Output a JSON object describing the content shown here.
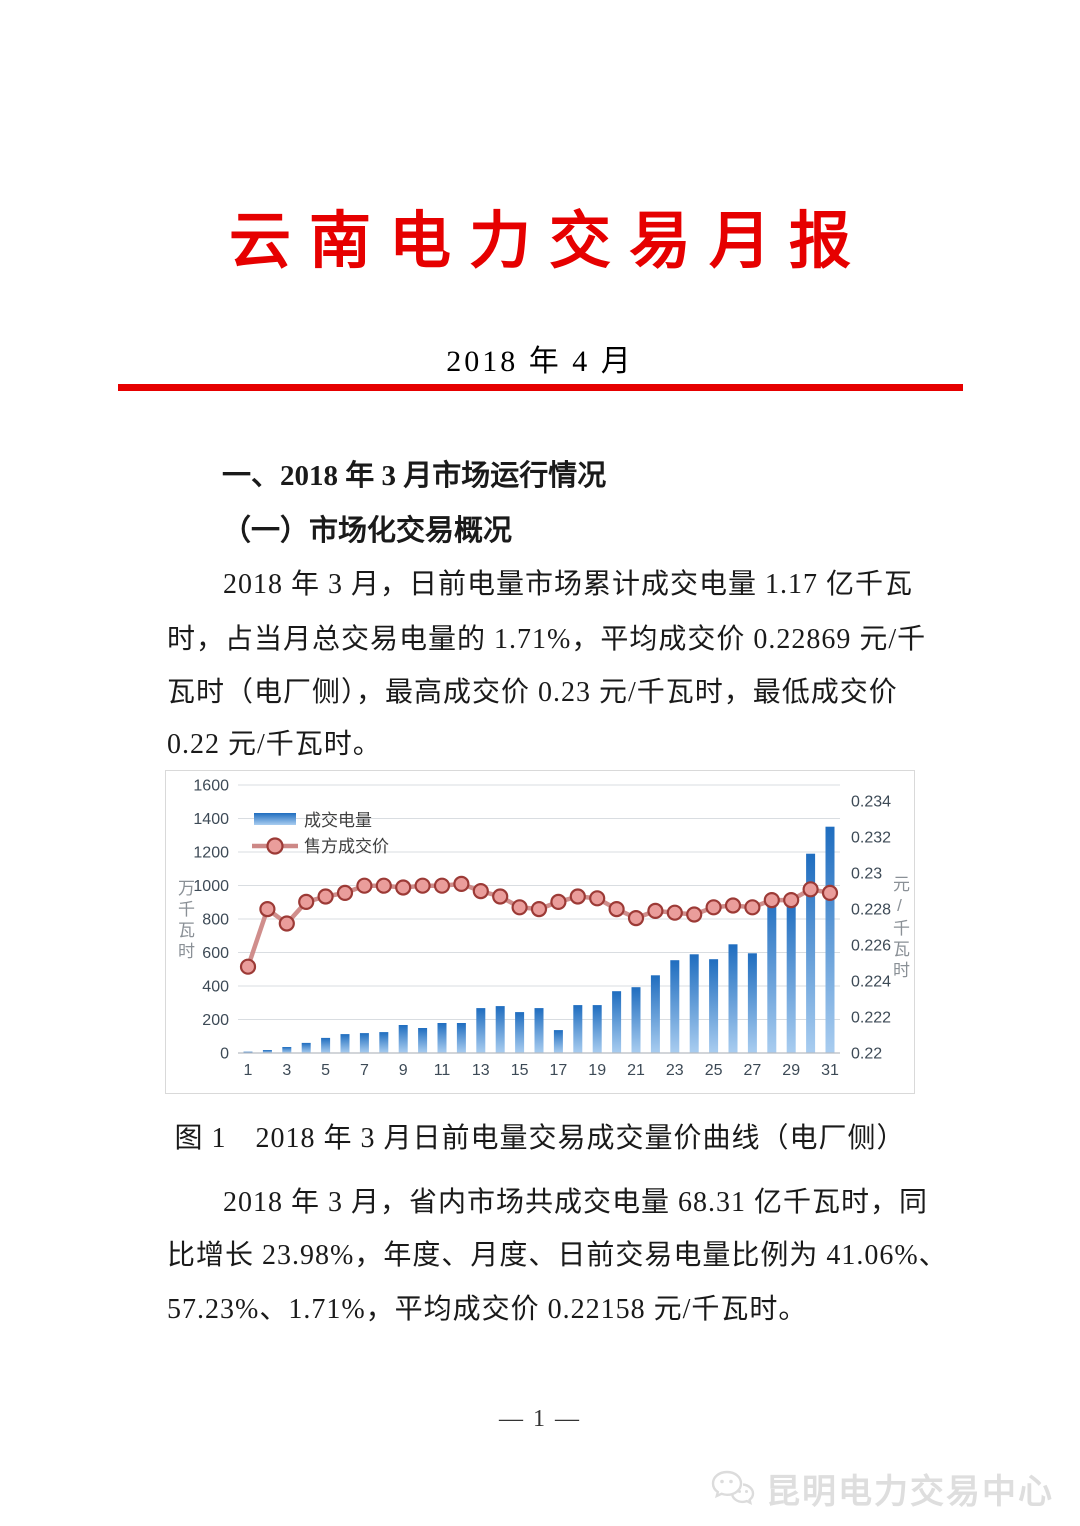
{
  "doc": {
    "title": "云南电力交易月报",
    "subtitle": "2018 年 4 月",
    "section_heading": "一、2018 年 3 月市场运行情况",
    "subsection_heading": "（一）市场化交易概况",
    "paragraph1_lines": [
      "2018 年 3 月，日前电量市场累计成交电量 1.17 亿千瓦",
      "时，占当月总交易电量的 1.71%，平均成交价 0.22869 元/千",
      "瓦时（电厂侧），最高成交价 0.23 元/千瓦时，最低成交价",
      "0.22 元/千瓦时。"
    ],
    "figure_caption": "图 1　2018 年 3 月日前电量交易成交量价曲线（电厂侧）",
    "paragraph2_lines": [
      "2018 年 3 月，省内市场共成交电量 68.31 亿千瓦时，同",
      "比增长 23.98%，年度、月度、日前交易电量比例为 41.06%、",
      "57.23%、1.71%，平均成交价 0.22158 元/千瓦时。"
    ],
    "page_number": "— 1 —",
    "footer_brand": "昆明电力交易中心"
  },
  "colors": {
    "accent_red": "#e60000",
    "bar_top": "#1f6dbf",
    "bar_bottom": "#a9cdf0",
    "line": "#cd8886",
    "marker_fill": "#ea9d9b",
    "marker_stroke": "#9c3a36",
    "gridline": "#d9dde1",
    "axis_line": "#b7bcc2",
    "tick_text": "#3d4a56",
    "legend_text": "#404040",
    "axis_title_text": "#8a9096"
  },
  "chart_data": {
    "type": "combo",
    "x": [
      1,
      2,
      3,
      4,
      5,
      6,
      7,
      8,
      9,
      10,
      11,
      12,
      13,
      14,
      15,
      16,
      17,
      18,
      19,
      20,
      21,
      22,
      23,
      24,
      25,
      26,
      27,
      28,
      29,
      30,
      31
    ],
    "x_axis_tick_labels": [
      1,
      3,
      5,
      7,
      9,
      11,
      13,
      15,
      17,
      19,
      21,
      23,
      25,
      27,
      29,
      31
    ],
    "series": [
      {
        "name": "成交电量",
        "type": "bar",
        "axis": "left",
        "values": [
          8,
          18,
          36,
          60,
          90,
          113,
          119,
          125,
          167,
          149,
          179,
          179,
          268,
          280,
          244,
          268,
          137,
          286,
          286,
          369,
          393,
          464,
          554,
          589,
          560,
          649,
          595,
          946,
          917,
          1190,
          1351
        ]
      },
      {
        "name": "售方成交价",
        "type": "line",
        "axis": "right",
        "values": [
          0.2248,
          0.228,
          0.2272,
          0.2284,
          0.2287,
          0.2289,
          0.2293,
          0.2293,
          0.2292,
          0.2293,
          0.2293,
          0.2294,
          0.229,
          0.2287,
          0.2281,
          0.228,
          0.2284,
          0.2287,
          0.2286,
          0.228,
          0.2275,
          0.2279,
          0.2278,
          0.2277,
          0.2281,
          0.2282,
          0.2281,
          0.2285,
          0.2285,
          0.2291,
          0.2289
        ]
      }
    ],
    "left_axis": {
      "title": "万千瓦时",
      "min": 0,
      "max": 1600,
      "tick_interval": 200
    },
    "right_axis": {
      "title": "元/千瓦时",
      "min": 0.22,
      "plot_max": 0.2349,
      "tick_interval": 0.002,
      "max_label": 0.234
    },
    "legend": [
      "成交电量",
      "售方成交价"
    ],
    "legend_position": "top-left-inside",
    "grid": true
  }
}
